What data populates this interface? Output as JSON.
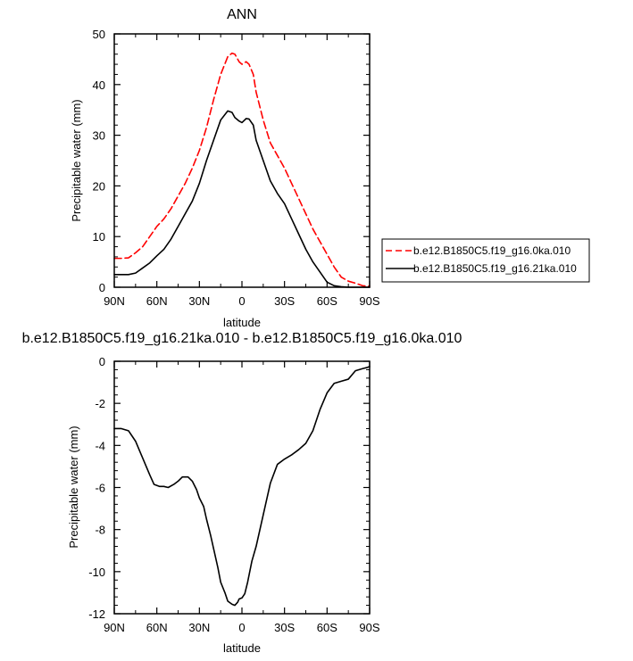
{
  "chart_data": [
    {
      "type": "line",
      "title": "ANN",
      "xlabel": "latitude",
      "ylabel": "Precipitable water (mm)",
      "xlim": [
        90,
        -90
      ],
      "ylim": [
        0,
        50
      ],
      "x_ticks": [
        90,
        60,
        30,
        0,
        -30,
        -60,
        -90
      ],
      "x_tick_labels": [
        "90N",
        "60N",
        "30N",
        "0",
        "30S",
        "60S",
        "90S"
      ],
      "y_ticks": [
        0,
        10,
        20,
        30,
        40,
        50
      ],
      "y_tick_labels": [
        "0",
        "10",
        "20",
        "30",
        "40",
        "50"
      ],
      "legend_position": "right",
      "series": [
        {
          "name": "b.e12.B1850C5.f19_g16.0ka.010",
          "color": "#ff0000",
          "style": "dashed",
          "x": [
            90,
            85,
            80,
            75,
            70,
            65,
            60,
            55,
            50,
            45,
            40,
            35,
            30,
            25,
            20,
            15,
            10,
            7,
            5,
            2,
            0,
            -3,
            -5,
            -8,
            -10,
            -15,
            -20,
            -25,
            -30,
            -35,
            -40,
            -45,
            -50,
            -55,
            -60,
            -65,
            -70,
            -75,
            -80,
            -85,
            -90
          ],
          "values": [
            5.7,
            5.7,
            5.8,
            6.8,
            8.0,
            10.0,
            12.0,
            13.5,
            15.5,
            18.0,
            20.5,
            23.5,
            27.0,
            31.5,
            37.0,
            42.0,
            45.5,
            46.2,
            46.0,
            44.5,
            44.0,
            44.5,
            44.0,
            42.0,
            38.5,
            33.0,
            28.5,
            26.0,
            23.5,
            20.5,
            17.5,
            14.5,
            11.5,
            9.0,
            6.5,
            4.0,
            2.0,
            1.2,
            0.8,
            0.3,
            0.2
          ]
        },
        {
          "name": "b.e12.B1850C5.f19_g16.21ka.010",
          "color": "#000000",
          "style": "solid",
          "x": [
            90,
            85,
            80,
            75,
            70,
            65,
            60,
            55,
            50,
            45,
            40,
            35,
            30,
            25,
            20,
            15,
            10,
            7,
            5,
            2,
            0,
            -3,
            -5,
            -8,
            -10,
            -15,
            -20,
            -25,
            -30,
            -35,
            -40,
            -45,
            -50,
            -55,
            -60,
            -65,
            -70,
            -75,
            -80,
            -85,
            -90
          ],
          "values": [
            2.5,
            2.5,
            2.5,
            2.8,
            3.8,
            4.8,
            6.2,
            7.5,
            9.5,
            12.0,
            14.5,
            17.0,
            20.5,
            25.0,
            29.0,
            33.0,
            34.8,
            34.5,
            33.5,
            32.8,
            32.5,
            33.3,
            33.2,
            32.0,
            29.0,
            25.0,
            21.0,
            18.5,
            16.5,
            13.5,
            10.5,
            7.5,
            5.0,
            3.0,
            1.0,
            0.3,
            0.1,
            0.0,
            0.0,
            0.0,
            0.0
          ]
        }
      ]
    },
    {
      "type": "line",
      "title": "b.e12.B1850C5.f19_g16.21ka.010 - b.e12.B1850C5.f19_g16.0ka.010",
      "xlabel": "latitude",
      "ylabel": "Precipitable water (mm)",
      "xlim": [
        90,
        -90
      ],
      "ylim": [
        -12,
        0
      ],
      "x_ticks": [
        90,
        60,
        30,
        0,
        -30,
        -60,
        -90
      ],
      "x_tick_labels": [
        "90N",
        "60N",
        "30N",
        "0",
        "30S",
        "60S",
        "90S"
      ],
      "y_ticks": [
        0,
        -2,
        -4,
        -6,
        -8,
        -10,
        -12
      ],
      "y_tick_labels": [
        "0",
        "-2",
        "-4",
        "-6",
        "-8",
        "-10",
        "-12"
      ],
      "series": [
        {
          "color": "#000000",
          "style": "solid",
          "x": [
            90,
            85,
            80,
            75,
            70,
            65,
            62,
            58,
            55,
            52,
            48,
            45,
            42,
            38,
            35,
            32,
            30,
            27,
            25,
            22,
            20,
            17,
            15,
            12,
            10,
            7,
            5,
            3,
            2,
            0,
            -2,
            -4,
            -7,
            -10,
            -15,
            -20,
            -25,
            -30,
            -35,
            -40,
            -45,
            -50,
            -55,
            -60,
            -65,
            -70,
            -75,
            -80,
            -85,
            -88,
            -90
          ],
          "values": [
            -3.2,
            -3.2,
            -3.3,
            -3.8,
            -4.6,
            -5.4,
            -5.85,
            -5.95,
            -5.95,
            -6.0,
            -5.85,
            -5.7,
            -5.5,
            -5.5,
            -5.7,
            -6.1,
            -6.5,
            -6.9,
            -7.5,
            -8.3,
            -8.9,
            -9.8,
            -10.5,
            -11.0,
            -11.4,
            -11.55,
            -11.6,
            -11.45,
            -11.3,
            -11.25,
            -11.05,
            -10.5,
            -9.5,
            -8.8,
            -7.3,
            -5.8,
            -4.9,
            -4.65,
            -4.45,
            -4.2,
            -3.9,
            -3.3,
            -2.3,
            -1.5,
            -1.05,
            -0.95,
            -0.85,
            -0.45,
            -0.35,
            -0.3,
            -0.25
          ]
        }
      ]
    }
  ]
}
